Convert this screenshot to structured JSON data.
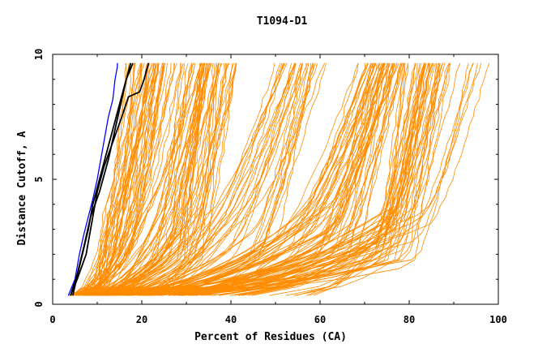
{
  "chart_data": {
    "type": "line",
    "title": "T1094-D1",
    "xlabel": "Percent of Residues (CA)",
    "ylabel": "Distance Cutoff, A",
    "xlim": [
      0,
      100
    ],
    "ylim": [
      0,
      10
    ],
    "x_ticks": [
      "0",
      "20",
      "40",
      "60",
      "80",
      "100"
    ],
    "y_ticks": [
      "0",
      "5",
      "10"
    ],
    "grid": false,
    "legend": "none",
    "colors": {
      "models": "#ff8c00",
      "reference": "#0000ff",
      "best": "#000000"
    },
    "reference_series": [
      {
        "color": "#0000ff",
        "x": [
          3.5,
          5.0,
          6.0,
          7.0,
          8.0,
          9.0,
          10.0,
          11.0,
          12.0,
          12.5,
          13.5,
          14.0,
          14.5,
          14.5
        ],
        "y": [
          0.35,
          1.0,
          2.0,
          2.8,
          3.5,
          4.2,
          5.0,
          6.0,
          7.0,
          7.5,
          8.2,
          9.0,
          9.5,
          9.65
        ]
      },
      {
        "color": "#000000",
        "x": [
          4.0,
          5.5,
          7.0,
          8.5,
          10.5,
          12.5,
          14.0,
          15.5,
          16.5,
          17.5
        ],
        "y": [
          0.35,
          1.2,
          2.3,
          3.5,
          4.5,
          5.8,
          7.0,
          8.2,
          9.0,
          9.65
        ]
      },
      {
        "color": "#000000",
        "x": [
          4.5,
          6.0,
          8.0,
          9.0,
          10.5,
          12.0,
          13.5,
          15.0,
          16.5,
          18.0
        ],
        "y": [
          0.35,
          1.5,
          3.0,
          4.0,
          5.0,
          6.0,
          7.0,
          8.0,
          9.0,
          9.65
        ]
      },
      {
        "color": "#000000",
        "x": [
          4.0,
          5.5,
          7.5,
          8.5,
          10.0,
          11.5,
          13.5,
          15.5,
          17.0,
          19.5,
          20.5,
          21.5
        ],
        "y": [
          0.35,
          1.0,
          2.0,
          3.0,
          4.5,
          5.5,
          6.5,
          7.5,
          8.3,
          8.5,
          9.0,
          9.65
        ]
      }
    ],
    "model_families": [
      {
        "name_hidden": "a",
        "count": 45,
        "start": [
          3.5,
          11.0
        ],
        "mid": [
          9.0,
          20.0
        ],
        "end": [
          15.0,
          30.0
        ]
      },
      {
        "name_hidden": "b",
        "count": 55,
        "start": [
          5.0,
          14.0
        ],
        "mid": [
          18.0,
          36.0
        ],
        "end": [
          28.0,
          42.0
        ]
      },
      {
        "name_hidden": "c",
        "count": 30,
        "start": [
          8.0,
          22.0
        ],
        "mid": [
          30.0,
          50.0
        ],
        "end": [
          48.0,
          62.0
        ]
      },
      {
        "name_hidden": "d",
        "count": 50,
        "start": [
          10.0,
          35.0
        ],
        "mid": [
          50.0,
          70.0
        ],
        "end": [
          68.0,
          80.0
        ]
      },
      {
        "name_hidden": "e",
        "count": 45,
        "start": [
          15.0,
          60.0
        ],
        "mid": [
          70.0,
          82.0
        ],
        "end": [
          78.0,
          92.0
        ]
      },
      {
        "name_hidden": "f",
        "count": 6,
        "start": [
          6.0,
          14.0
        ],
        "mid": [
          80.0,
          86.0
        ],
        "end": [
          93.0,
          98.0
        ]
      }
    ]
  }
}
